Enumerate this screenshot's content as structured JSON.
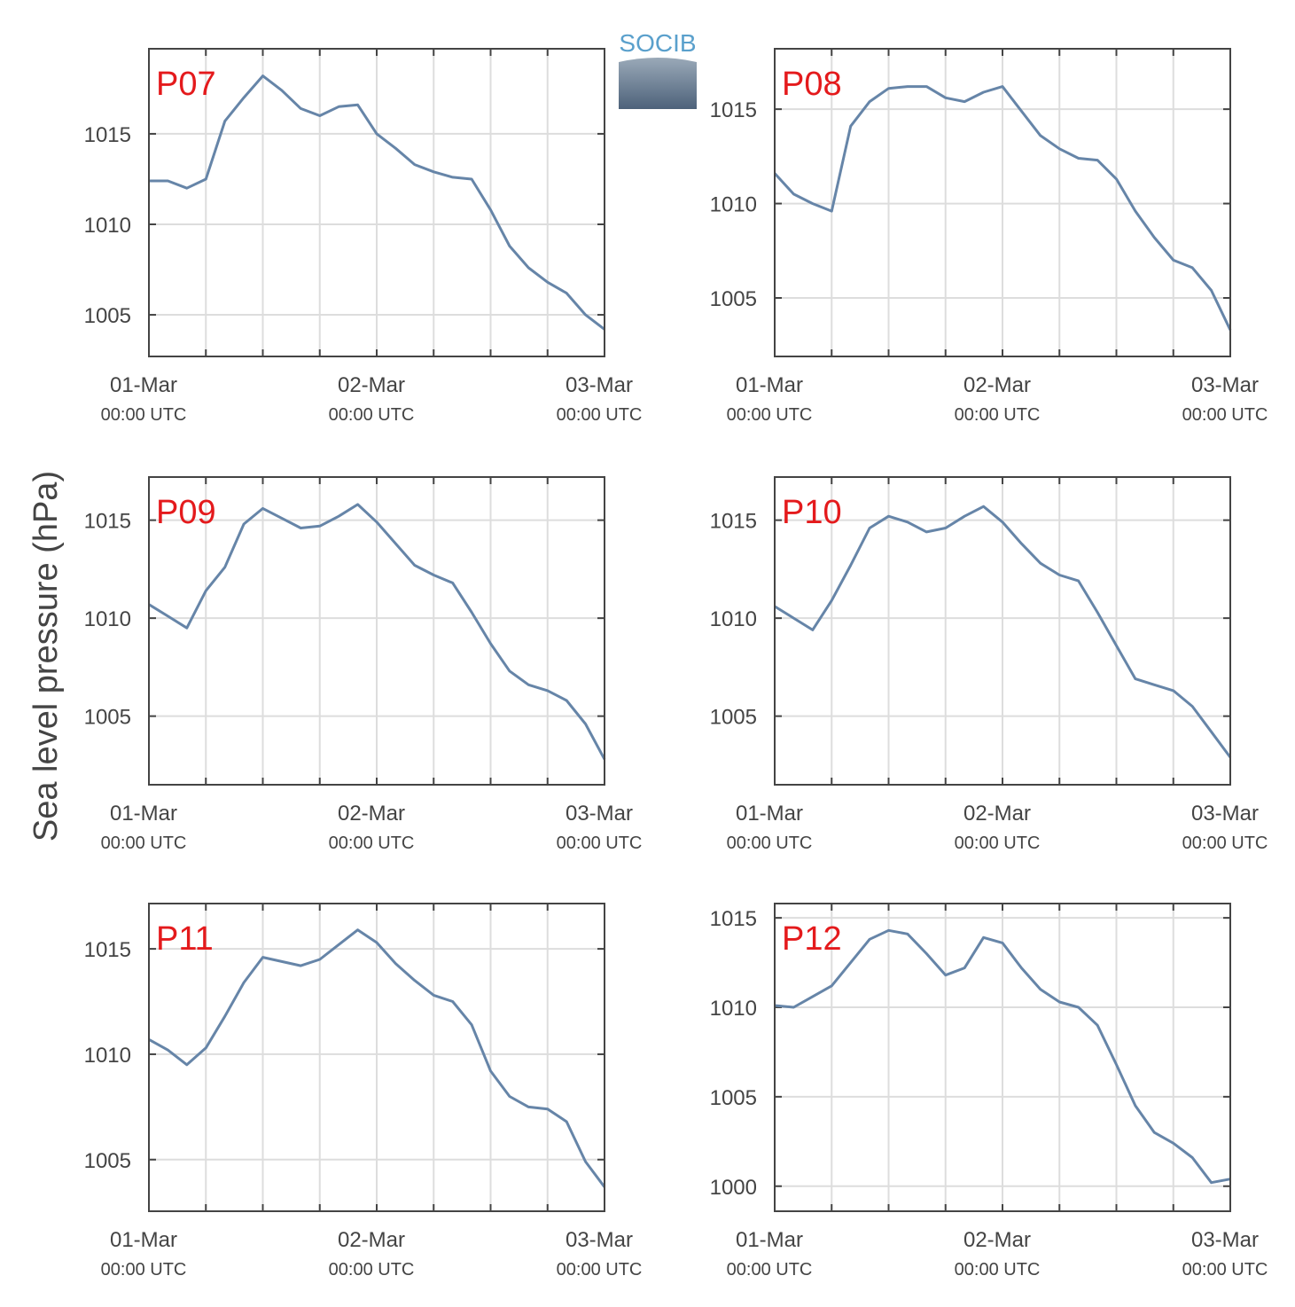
{
  "logo": "SOCIB",
  "y_label": "Sea level pressure (hPa)",
  "chart_data": [
    {
      "type": "line",
      "title": "P07",
      "color": "#6685a8",
      "grid": true,
      "x": [
        "01-Mar 00:00",
        "01-Mar 02:00",
        "01-Mar 04:00",
        "01-Mar 06:00",
        "01-Mar 08:00",
        "01-Mar 10:00",
        "01-Mar 12:00",
        "01-Mar 14:00",
        "01-Mar 16:00",
        "01-Mar 18:00",
        "01-Mar 20:00",
        "01-Mar 22:00",
        "02-Mar 00:00",
        "02-Mar 02:00",
        "02-Mar 04:00",
        "02-Mar 06:00",
        "02-Mar 08:00",
        "02-Mar 10:00",
        "02-Mar 12:00",
        "02-Mar 14:00",
        "02-Mar 16:00",
        "02-Mar 18:00",
        "02-Mar 20:00",
        "02-Mar 22:00",
        "03-Mar 00:00"
      ],
      "values": [
        1012.4,
        1012.4,
        1012.0,
        1012.5,
        1015.7,
        1017.0,
        1018.2,
        1017.4,
        1016.4,
        1016.0,
        1016.5,
        1016.6,
        1015.0,
        1014.2,
        1013.3,
        1012.9,
        1012.6,
        1012.5,
        1010.8,
        1008.8,
        1007.6,
        1006.8,
        1006.2,
        1005.0,
        1004.2
      ],
      "xlim": [
        "01-Mar 00:00",
        "03-Mar 00:00"
      ],
      "xticks": [
        {
          "value": "01-Mar 00:00",
          "label": "01-Mar",
          "sublabel": "00:00 UTC"
        },
        {
          "value": "02-Mar 00:00",
          "label": "02-Mar",
          "sublabel": "00:00 UTC"
        },
        {
          "value": "03-Mar 00:00",
          "label": "03-Mar",
          "sublabel": "00:00 UTC"
        }
      ],
      "xminor": [
        "01-Mar 06:00",
        "01-Mar 12:00",
        "01-Mar 18:00",
        "02-Mar 06:00",
        "02-Mar 12:00",
        "02-Mar 18:00"
      ],
      "ylim": [
        1002.7,
        1019.7
      ],
      "yticks": [
        1005,
        1010,
        1015
      ]
    },
    {
      "type": "line",
      "title": "P08",
      "color": "#6685a8",
      "grid": true,
      "x": [
        "01-Mar 00:00",
        "01-Mar 02:00",
        "01-Mar 04:00",
        "01-Mar 06:00",
        "01-Mar 08:00",
        "01-Mar 10:00",
        "01-Mar 12:00",
        "01-Mar 14:00",
        "01-Mar 16:00",
        "01-Mar 18:00",
        "01-Mar 20:00",
        "01-Mar 22:00",
        "02-Mar 00:00",
        "02-Mar 02:00",
        "02-Mar 04:00",
        "02-Mar 06:00",
        "02-Mar 08:00",
        "02-Mar 10:00",
        "02-Mar 12:00",
        "02-Mar 14:00",
        "02-Mar 16:00",
        "02-Mar 18:00",
        "02-Mar 20:00",
        "02-Mar 22:00",
        "03-Mar 00:00"
      ],
      "values": [
        1011.6,
        1010.5,
        1010.0,
        1009.6,
        1014.1,
        1015.4,
        1016.1,
        1016.2,
        1016.2,
        1015.6,
        1015.4,
        1015.9,
        1016.2,
        1014.9,
        1013.6,
        1012.9,
        1012.4,
        1012.3,
        1011.3,
        1009.6,
        1008.2,
        1007.0,
        1006.6,
        1005.4,
        1003.3
      ],
      "xlim": [
        "01-Mar 00:00",
        "03-Mar 00:00"
      ],
      "xticks": [
        {
          "value": "01-Mar 00:00",
          "label": "01-Mar",
          "sublabel": "00:00 UTC"
        },
        {
          "value": "02-Mar 00:00",
          "label": "02-Mar",
          "sublabel": "00:00 UTC"
        },
        {
          "value": "03-Mar 00:00",
          "label": "03-Mar",
          "sublabel": "00:00 UTC"
        }
      ],
      "xminor": [
        "01-Mar 06:00",
        "01-Mar 12:00",
        "01-Mar 18:00",
        "02-Mar 06:00",
        "02-Mar 12:00",
        "02-Mar 18:00"
      ],
      "ylim": [
        1001.9,
        1018.2
      ],
      "yticks": [
        1005,
        1010,
        1015
      ]
    },
    {
      "type": "line",
      "title": "P09",
      "color": "#6685a8",
      "grid": true,
      "x": [
        "01-Mar 00:00",
        "01-Mar 02:00",
        "01-Mar 04:00",
        "01-Mar 06:00",
        "01-Mar 08:00",
        "01-Mar 10:00",
        "01-Mar 12:00",
        "01-Mar 14:00",
        "01-Mar 16:00",
        "01-Mar 18:00",
        "01-Mar 20:00",
        "01-Mar 22:00",
        "02-Mar 00:00",
        "02-Mar 02:00",
        "02-Mar 04:00",
        "02-Mar 06:00",
        "02-Mar 08:00",
        "02-Mar 10:00",
        "02-Mar 12:00",
        "02-Mar 14:00",
        "02-Mar 16:00",
        "02-Mar 18:00",
        "02-Mar 20:00",
        "02-Mar 22:00",
        "03-Mar 00:00"
      ],
      "values": [
        1010.7,
        1010.1,
        1009.5,
        1011.4,
        1012.6,
        1014.8,
        1015.6,
        1015.1,
        1014.6,
        1014.7,
        1015.2,
        1015.8,
        1014.9,
        1013.8,
        1012.7,
        1012.2,
        1011.8,
        1010.3,
        1008.7,
        1007.3,
        1006.6,
        1006.3,
        1005.8,
        1004.6,
        1002.8
      ],
      "xlim": [
        "01-Mar 00:00",
        "03-Mar 00:00"
      ],
      "xticks": [
        {
          "value": "01-Mar 00:00",
          "label": "01-Mar",
          "sublabel": "00:00 UTC"
        },
        {
          "value": "02-Mar 00:00",
          "label": "02-Mar",
          "sublabel": "00:00 UTC"
        },
        {
          "value": "03-Mar 00:00",
          "label": "03-Mar",
          "sublabel": "00:00 UTC"
        }
      ],
      "xminor": [
        "01-Mar 06:00",
        "01-Mar 12:00",
        "01-Mar 18:00",
        "02-Mar 06:00",
        "02-Mar 12:00",
        "02-Mar 18:00"
      ],
      "ylim": [
        1001.5,
        1017.2
      ],
      "yticks": [
        1005,
        1010,
        1015
      ]
    },
    {
      "type": "line",
      "title": "P10",
      "color": "#6685a8",
      "grid": true,
      "x": [
        "01-Mar 00:00",
        "01-Mar 02:00",
        "01-Mar 04:00",
        "01-Mar 06:00",
        "01-Mar 08:00",
        "01-Mar 10:00",
        "01-Mar 12:00",
        "01-Mar 14:00",
        "01-Mar 16:00",
        "01-Mar 18:00",
        "01-Mar 20:00",
        "01-Mar 22:00",
        "02-Mar 00:00",
        "02-Mar 02:00",
        "02-Mar 04:00",
        "02-Mar 06:00",
        "02-Mar 08:00",
        "02-Mar 10:00",
        "02-Mar 12:00",
        "02-Mar 14:00",
        "02-Mar 16:00",
        "02-Mar 18:00",
        "02-Mar 20:00",
        "02-Mar 22:00",
        "03-Mar 00:00"
      ],
      "values": [
        1010.6,
        1010.0,
        1009.4,
        1010.9,
        1012.7,
        1014.6,
        1015.2,
        1014.9,
        1014.4,
        1014.6,
        1015.2,
        1015.7,
        1014.9,
        1013.8,
        1012.8,
        1012.2,
        1011.9,
        1010.3,
        1008.6,
        1006.9,
        1006.6,
        1006.3,
        1005.5,
        1004.2,
        1002.9
      ],
      "xlim": [
        "01-Mar 00:00",
        "03-Mar 00:00"
      ],
      "xticks": [
        {
          "value": "01-Mar 00:00",
          "label": "01-Mar",
          "sublabel": "00:00 UTC"
        },
        {
          "value": "02-Mar 00:00",
          "label": "02-Mar",
          "sublabel": "00:00 UTC"
        },
        {
          "value": "03-Mar 00:00",
          "label": "03-Mar",
          "sublabel": "00:00 UTC"
        }
      ],
      "xminor": [
        "01-Mar 06:00",
        "01-Mar 12:00",
        "01-Mar 18:00",
        "02-Mar 06:00",
        "02-Mar 12:00",
        "02-Mar 18:00"
      ],
      "ylim": [
        1001.5,
        1017.2
      ],
      "yticks": [
        1005,
        1010,
        1015
      ]
    },
    {
      "type": "line",
      "title": "P11",
      "color": "#6685a8",
      "grid": true,
      "x": [
        "01-Mar 00:00",
        "01-Mar 02:00",
        "01-Mar 04:00",
        "01-Mar 06:00",
        "01-Mar 08:00",
        "01-Mar 10:00",
        "01-Mar 12:00",
        "01-Mar 14:00",
        "01-Mar 16:00",
        "01-Mar 18:00",
        "01-Mar 20:00",
        "01-Mar 22:00",
        "02-Mar 00:00",
        "02-Mar 02:00",
        "02-Mar 04:00",
        "02-Mar 06:00",
        "02-Mar 08:00",
        "02-Mar 10:00",
        "02-Mar 12:00",
        "02-Mar 14:00",
        "02-Mar 16:00",
        "02-Mar 18:00",
        "02-Mar 20:00",
        "02-Mar 22:00",
        "03-Mar 00:00"
      ],
      "values": [
        1010.7,
        1010.2,
        1009.5,
        1010.3,
        1011.8,
        1013.4,
        1014.6,
        1014.4,
        1014.2,
        1014.5,
        1015.2,
        1015.9,
        1015.3,
        1014.3,
        1013.5,
        1012.8,
        1012.5,
        1011.4,
        1009.2,
        1008.0,
        1007.5,
        1007.4,
        1006.8,
        1004.9,
        1003.7
      ],
      "xlim": [
        "01-Mar 00:00",
        "03-Mar 00:00"
      ],
      "xticks": [
        {
          "value": "01-Mar 00:00",
          "label": "01-Mar",
          "sublabel": "00:00 UTC"
        },
        {
          "value": "02-Mar 00:00",
          "label": "02-Mar",
          "sublabel": "00:00 UTC"
        },
        {
          "value": "03-Mar 00:00",
          "label": "03-Mar",
          "sublabel": "00:00 UTC"
        }
      ],
      "xminor": [
        "01-Mar 06:00",
        "01-Mar 12:00",
        "01-Mar 18:00",
        "02-Mar 06:00",
        "02-Mar 12:00",
        "02-Mar 18:00"
      ],
      "ylim": [
        1002.55,
        1017.15
      ],
      "yticks": [
        1005,
        1010,
        1015
      ]
    },
    {
      "type": "line",
      "title": "P12",
      "color": "#6685a8",
      "grid": true,
      "x": [
        "01-Mar 00:00",
        "01-Mar 02:00",
        "01-Mar 04:00",
        "01-Mar 06:00",
        "01-Mar 08:00",
        "01-Mar 10:00",
        "01-Mar 12:00",
        "01-Mar 14:00",
        "01-Mar 16:00",
        "01-Mar 18:00",
        "01-Mar 20:00",
        "01-Mar 22:00",
        "02-Mar 00:00",
        "02-Mar 02:00",
        "02-Mar 04:00",
        "02-Mar 06:00",
        "02-Mar 08:00",
        "02-Mar 10:00",
        "02-Mar 12:00",
        "02-Mar 14:00",
        "02-Mar 16:00",
        "02-Mar 18:00",
        "02-Mar 20:00",
        "02-Mar 22:00",
        "03-Mar 00:00"
      ],
      "values": [
        1010.1,
        1010.0,
        1010.6,
        1011.2,
        1012.5,
        1013.8,
        1014.3,
        1014.1,
        1013.0,
        1011.8,
        1012.2,
        1013.9,
        1013.6,
        1012.2,
        1011.0,
        1010.3,
        1010.0,
        1009.0,
        1006.8,
        1004.5,
        1003.0,
        1002.4,
        1001.6,
        1000.2,
        1000.4
      ],
      "xlim": [
        "01-Mar 00:00",
        "03-Mar 00:00"
      ],
      "xticks": [
        {
          "value": "01-Mar 00:00",
          "label": "01-Mar",
          "sublabel": "00:00 UTC"
        },
        {
          "value": "02-Mar 00:00",
          "label": "02-Mar",
          "sublabel": "00:00 UTC"
        },
        {
          "value": "03-Mar 00:00",
          "label": "03-Mar",
          "sublabel": "00:00 UTC"
        }
      ],
      "xminor": [
        "01-Mar 06:00",
        "01-Mar 12:00",
        "01-Mar 18:00",
        "02-Mar 06:00",
        "02-Mar 12:00",
        "02-Mar 18:00"
      ],
      "ylim": [
        998.6,
        1015.8
      ],
      "yticks": [
        1000,
        1005,
        1010,
        1015
      ]
    }
  ]
}
